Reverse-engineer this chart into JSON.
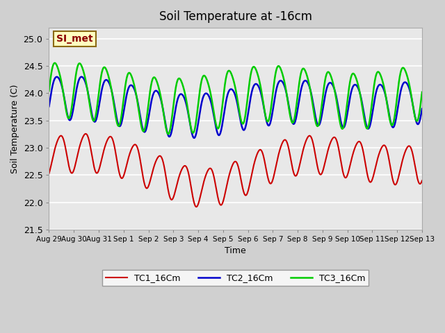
{
  "title": "Soil Temperature at -16cm",
  "xlabel": "Time",
  "ylabel": "Soil Temperature (C)",
  "ylim": [
    21.5,
    25.2
  ],
  "xlim_start": 0,
  "xlim_end": 360,
  "xtick_positions": [
    0,
    24,
    48,
    72,
    96,
    120,
    144,
    168,
    192,
    216,
    240,
    264,
    288,
    312,
    336,
    360
  ],
  "xtick_labels": [
    "Aug 29",
    "Aug 30",
    "Aug 31",
    "Sep 1",
    "Sep 2",
    "Sep 3",
    "Sep 4",
    "Sep 5",
    "Sep 6",
    "Sep 7",
    "Sep 8",
    "Sep 9",
    "Sep 10",
    "Sep 11",
    "Sep 12",
    "Sep 13"
  ],
  "yticks": [
    21.5,
    22.0,
    22.5,
    23.0,
    23.5,
    24.0,
    24.5,
    25.0
  ],
  "line_colors": {
    "TC1": "#cc0000",
    "TC2": "#0000cc",
    "TC3": "#00cc00"
  },
  "line_widths": {
    "TC1": 1.5,
    "TC2": 1.8,
    "TC3": 1.8
  },
  "legend_labels": [
    "TC1_16Cm",
    "TC2_16Cm",
    "TC3_16Cm"
  ],
  "watermark": "SI_met",
  "watermark_color": "#8b0000",
  "watermark_bg": "#ffffc0",
  "watermark_border": "#8b6914"
}
